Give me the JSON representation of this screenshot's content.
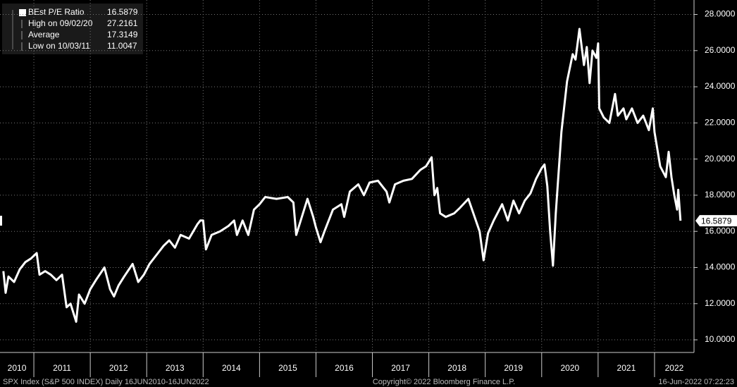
{
  "chart_data": {
    "type": "line",
    "legend_stats": [
      {
        "label": "BEst P/E Ratio",
        "value": 16.5879
      },
      {
        "label": "High on 09/02/20",
        "value": 27.2161
      },
      {
        "label": "Average",
        "value": 17.3149
      },
      {
        "label": "Low on 10/03/11",
        "value": 11.0047
      }
    ],
    "footer": {
      "left": "SPX Index (S&P 500 INDEX)  Daily 16JUN2010-16JUN2022",
      "center": "Copyright© 2022 Bloomberg Finance L.P.",
      "right": "16-Jun-2022 07:22:23"
    },
    "xlim": [
      2010.4,
      2022.7
    ],
    "xticks": [
      2011,
      2012,
      2013,
      2014,
      2015,
      2016,
      2017,
      2018,
      2019,
      2020,
      2021,
      2022
    ],
    "xtick_labels": [
      "2010",
      "2011",
      "2012",
      "2013",
      "2014",
      "2015",
      "2016",
      "2017",
      "2018",
      "2019",
      "2020",
      "2021",
      "2022"
    ],
    "ylim": [
      9.3,
      28.8
    ],
    "yticks": [
      {
        "value": 10,
        "label": "10.0000"
      },
      {
        "value": 12,
        "label": "12.0000"
      },
      {
        "value": 14,
        "label": "14.0000"
      },
      {
        "value": 16,
        "label": "16.0000"
      },
      {
        "value": 18,
        "label": "18.0000"
      },
      {
        "value": 20,
        "label": "20.0000"
      },
      {
        "value": 22,
        "label": "22.0000"
      },
      {
        "value": 24,
        "label": "24.0000"
      },
      {
        "value": 26,
        "label": "26.0000"
      },
      {
        "value": 28,
        "label": "28.0000"
      }
    ],
    "grid": true,
    "series": [
      {
        "name": "BEst P/E Ratio",
        "color": "#ffffff",
        "x": [
          2010.46,
          2010.5,
          2010.55,
          2010.65,
          2010.75,
          2010.85,
          2010.95,
          2011.05,
          2011.1,
          2011.2,
          2011.3,
          2011.4,
          2011.5,
          2011.58,
          2011.65,
          2011.75,
          2011.8,
          2011.9,
          2012.0,
          2012.1,
          2012.25,
          2012.35,
          2012.42,
          2012.5,
          2012.6,
          2012.75,
          2012.85,
          2012.95,
          2013.05,
          2013.2,
          2013.3,
          2013.4,
          2013.5,
          2013.6,
          2013.75,
          2013.9,
          2013.95,
          2014.0,
          2014.05,
          2014.15,
          2014.3,
          2014.45,
          2014.55,
          2014.6,
          2014.7,
          2014.8,
          2014.9,
          2015.0,
          2015.1,
          2015.3,
          2015.5,
          2015.6,
          2015.65,
          2015.75,
          2015.85,
          2015.95,
          2016.0,
          2016.08,
          2016.15,
          2016.3,
          2016.45,
          2016.5,
          2016.6,
          2016.75,
          2016.85,
          2016.95,
          2017.1,
          2017.25,
          2017.3,
          2017.4,
          2017.55,
          2017.7,
          2017.85,
          2017.95,
          2018.05,
          2018.1,
          2018.15,
          2018.2,
          2018.3,
          2018.45,
          2018.55,
          2018.7,
          2018.8,
          2018.9,
          2018.97,
          2019.05,
          2019.15,
          2019.3,
          2019.4,
          2019.5,
          2019.6,
          2019.7,
          2019.8,
          2019.9,
          2020.0,
          2020.05,
          2020.1,
          2020.15,
          2020.2,
          2020.25,
          2020.35,
          2020.45,
          2020.55,
          2020.6,
          2020.67,
          2020.75,
          2020.8,
          2020.85,
          2020.9,
          2020.97,
          2021.0,
          2021.02,
          2021.1,
          2021.2,
          2021.3,
          2021.35,
          2021.45,
          2021.5,
          2021.6,
          2021.7,
          2021.8,
          2021.9,
          2021.97,
          2022.0,
          2022.1,
          2022.2,
          2022.25,
          2022.3,
          2022.35,
          2022.4,
          2022.42,
          2022.46
        ],
        "values": [
          13.8,
          12.6,
          13.5,
          13.2,
          13.9,
          14.3,
          14.5,
          14.8,
          13.6,
          13.8,
          13.6,
          13.3,
          13.6,
          11.8,
          12.0,
          11.0,
          12.5,
          12.0,
          12.8,
          13.3,
          14.0,
          12.8,
          12.4,
          13.0,
          13.5,
          14.2,
          13.2,
          13.6,
          14.2,
          14.8,
          15.2,
          15.5,
          15.1,
          15.8,
          15.6,
          16.4,
          16.6,
          16.6,
          15.0,
          15.8,
          16.0,
          16.3,
          16.6,
          15.8,
          16.6,
          15.8,
          17.2,
          17.5,
          17.9,
          17.8,
          17.9,
          17.6,
          15.8,
          16.8,
          17.8,
          16.8,
          16.2,
          15.4,
          16.0,
          17.2,
          17.5,
          16.8,
          18.2,
          18.6,
          18.0,
          18.7,
          18.8,
          18.2,
          17.6,
          18.6,
          18.8,
          18.9,
          19.4,
          19.6,
          20.1,
          18.0,
          18.4,
          17.0,
          16.8,
          17.0,
          17.3,
          17.8,
          16.9,
          16.0,
          14.4,
          15.9,
          16.6,
          17.5,
          16.6,
          17.7,
          17.0,
          17.7,
          18.1,
          18.9,
          19.5,
          19.7,
          18.5,
          16.0,
          14.1,
          17.0,
          21.5,
          24.3,
          25.8,
          25.5,
          27.2,
          25.2,
          26.2,
          24.2,
          26.0,
          25.6,
          26.4,
          22.8,
          22.3,
          22.0,
          23.6,
          22.4,
          22.8,
          22.2,
          22.8,
          22.0,
          22.4,
          21.6,
          22.8,
          21.5,
          19.6,
          19.0,
          20.4,
          19.0,
          18.0,
          17.2,
          18.3,
          16.5879
        ]
      }
    ]
  }
}
